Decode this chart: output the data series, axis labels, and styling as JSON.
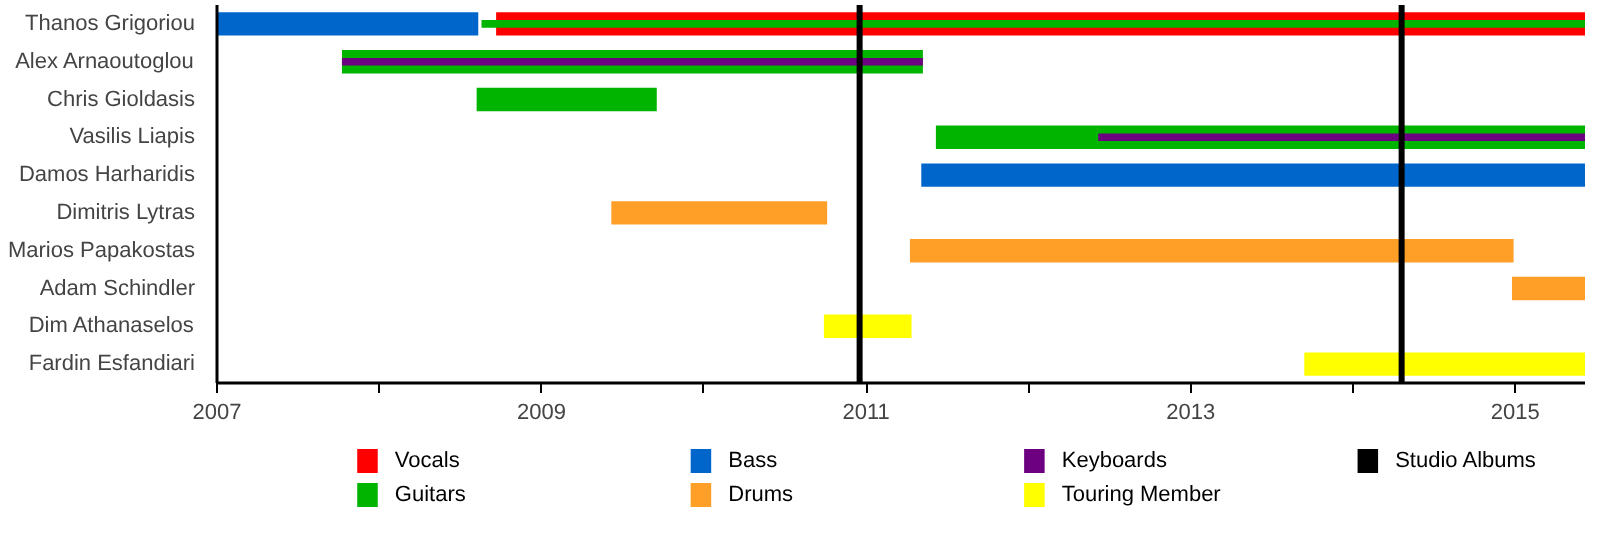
{
  "chart_data": {
    "type": "bar",
    "orientation": "horizontal",
    "categories": [
      "Thanos Grigoriou",
      "Alex Arnaoutoglou",
      "Chris Gioldasis",
      "Vasilis Liapis",
      "Damos Harharidis",
      "Dimitris Lytras",
      "Marios Papakostas",
      "Adam Schindler",
      "Dim Athanaselos",
      "Fardin Esfandiari"
    ],
    "series": [
      {
        "name": "Vocals",
        "color": "#ff0000",
        "base": [
          2008.72,
          null,
          null,
          null,
          null,
          null,
          null,
          null,
          null,
          null
        ],
        "values": [
          6.71,
          null,
          null,
          null,
          null,
          null,
          null,
          null,
          null,
          null
        ]
      },
      {
        "name": "Guitars",
        "color": "#00b400",
        "base": [
          2008.63,
          2007.77,
          2008.6,
          2011.43,
          null,
          null,
          null,
          null,
          null,
          null
        ],
        "values": [
          6.8,
          3.58,
          1.11,
          4.0,
          null,
          null,
          null,
          null,
          null,
          null
        ]
      },
      {
        "name": "Bass",
        "color": "#0066cc",
        "base": [
          2007,
          null,
          null,
          null,
          2011.34,
          null,
          null,
          null,
          null,
          null
        ],
        "values": [
          1.61,
          null,
          null,
          null,
          4.09,
          null,
          null,
          null,
          null,
          null
        ]
      },
      {
        "name": "Drums",
        "color": "#ff9f28",
        "base": [
          null,
          null,
          null,
          null,
          null,
          2009.43,
          2011.27,
          2014.98,
          null,
          null
        ],
        "values": [
          null,
          null,
          null,
          null,
          null,
          1.33,
          3.72,
          0.45,
          null,
          null
        ]
      },
      {
        "name": "Keyboards",
        "color": "#6d0080",
        "base": [
          null,
          2007.77,
          null,
          2012.43,
          null,
          null,
          null,
          null,
          null,
          null
        ],
        "values": [
          null,
          3.58,
          null,
          3.0,
          null,
          null,
          null,
          null,
          null,
          null
        ]
      },
      {
        "name": "Touring Member",
        "color": "#ffff00",
        "base": [
          null,
          null,
          null,
          null,
          null,
          null,
          null,
          null,
          2010.74,
          2013.7
        ],
        "values": [
          null,
          null,
          null,
          null,
          null,
          null,
          null,
          null,
          0.54,
          1.73
        ]
      }
    ],
    "ref_lines": [
      {
        "axis": "x",
        "value": 2010.96,
        "label": "Studio Albums",
        "color": "#000000"
      },
      {
        "axis": "x",
        "value": 2014.3,
        "color": "#000000"
      }
    ],
    "xlim": [
      2007,
      2015.43
    ],
    "xticks": [
      2007,
      {
        "value": 2008,
        "label": null
      },
      2009,
      {
        "value": 2010,
        "label": null
      },
      2011,
      {
        "value": 2012,
        "label": null
      },
      2013,
      {
        "value": 2014,
        "label": null
      },
      2015
    ],
    "grid": false,
    "legend": "bottom"
  }
}
